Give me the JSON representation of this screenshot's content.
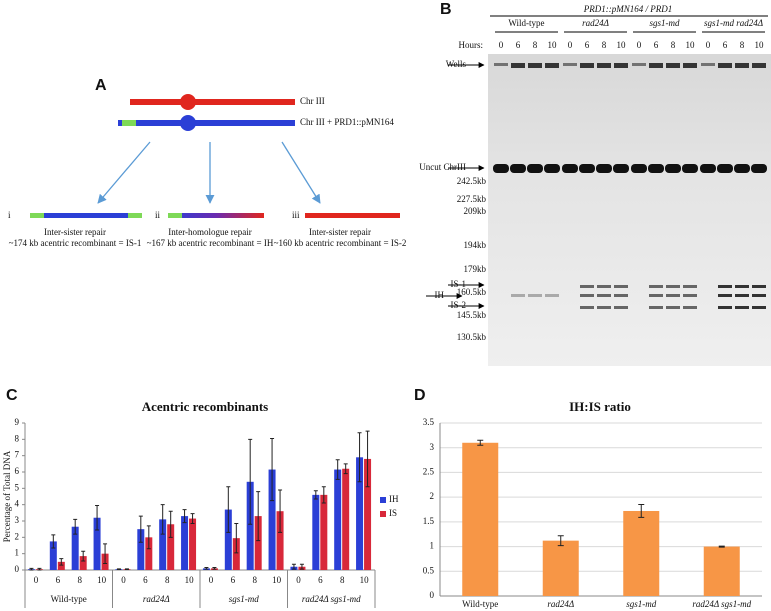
{
  "panel_a": {
    "label": "A",
    "chromosomes": [
      "Chr III",
      "Chr III + PRD1::pMN164"
    ],
    "outcomes": [
      {
        "numeral": "i",
        "title": "Inter-sister repair",
        "detail": "~174 kb acentric recombinant = IS-1"
      },
      {
        "numeral": "ii",
        "title": "Inter-homologue repair",
        "detail": "~167 kb acentric recombinant = IH"
      },
      {
        "numeral": "iii",
        "title": "Inter-sister repair",
        "detail": "~160 kb acentric recombinant = IS-2"
      }
    ]
  },
  "panel_b": {
    "label": "B",
    "header": "PRD1::pMN164 / PRD1",
    "hours_label": "Hours:",
    "groups": [
      {
        "name": "Wild-type",
        "hours": [
          "0",
          "6",
          "8",
          "10"
        ]
      },
      {
        "name": "rad24Δ",
        "hours": [
          "0",
          "6",
          "8",
          "10"
        ]
      },
      {
        "name": "sgs1-md",
        "hours": [
          "0",
          "6",
          "8",
          "10"
        ]
      },
      {
        "name": "sgs1-md rad24Δ",
        "hours": [
          "0",
          "6",
          "8",
          "10"
        ]
      }
    ],
    "markers": [
      "Wells",
      "Uncut ChrIII",
      "242.5kb",
      "227.5kb",
      "209kb",
      "194kb",
      "179kb",
      "IS-1",
      "160.5kb",
      "IH",
      "IS-2",
      "145.5kb",
      "130.5kb"
    ]
  },
  "chart_data": [
    {
      "type": "grouped-bar",
      "label": "C",
      "title": "Acentric recombinants",
      "y_label": "Percentage of Total DNA",
      "categories": [
        "0",
        "6",
        "8",
        "10",
        "0",
        "6",
        "8",
        "10",
        "0",
        "6",
        "8",
        "10",
        "0",
        "6",
        "8",
        "10"
      ],
      "groups": [
        "Wild-type",
        "rad24Δ",
        "sgs1-md",
        "rad24Δ sgs1-md"
      ],
      "ylim": [
        0,
        9
      ],
      "yticks": [
        0,
        1,
        2,
        3,
        4,
        5,
        6,
        7,
        8,
        9
      ],
      "grid": false,
      "series": [
        {
          "name": "IH",
          "color": "#2b3fd6",
          "values": [
            0.05,
            1.75,
            2.65,
            3.2,
            0.05,
            2.5,
            3.1,
            3.3,
            0.1,
            3.7,
            5.4,
            6.15,
            0.2,
            4.6,
            6.15,
            6.9
          ],
          "errors": [
            0.05,
            0.4,
            0.45,
            0.75,
            0.02,
            0.8,
            0.9,
            0.4,
            0.05,
            1.4,
            2.6,
            1.9,
            0.15,
            0.25,
            0.6,
            1.5
          ]
        },
        {
          "name": "IS",
          "color": "#d8283a",
          "values": [
            0.05,
            0.5,
            0.85,
            1.0,
            0.05,
            2.0,
            2.8,
            3.15,
            0.1,
            1.95,
            3.3,
            3.6,
            0.2,
            4.6,
            6.2,
            6.8
          ],
          "errors": [
            0.05,
            0.2,
            0.3,
            0.6,
            0.02,
            0.7,
            0.8,
            0.3,
            0.05,
            0.9,
            1.5,
            1.3,
            0.15,
            0.5,
            0.3,
            1.7
          ]
        }
      ]
    },
    {
      "type": "bar",
      "label": "D",
      "title": "IH:IS ratio",
      "categories": [
        "Wild-type",
        "rad24Δ",
        "sgs1-md",
        "rad24Δ sgs1-md"
      ],
      "values": [
        3.1,
        1.12,
        1.72,
        1.0
      ],
      "errors": [
        0.05,
        0.1,
        0.13,
        0.01
      ],
      "color": "#f79646",
      "ylim": [
        0,
        3.5
      ],
      "yticks": [
        0,
        0.5,
        1,
        1.5,
        2,
        2.5,
        3,
        3.5
      ],
      "grid": true
    }
  ]
}
